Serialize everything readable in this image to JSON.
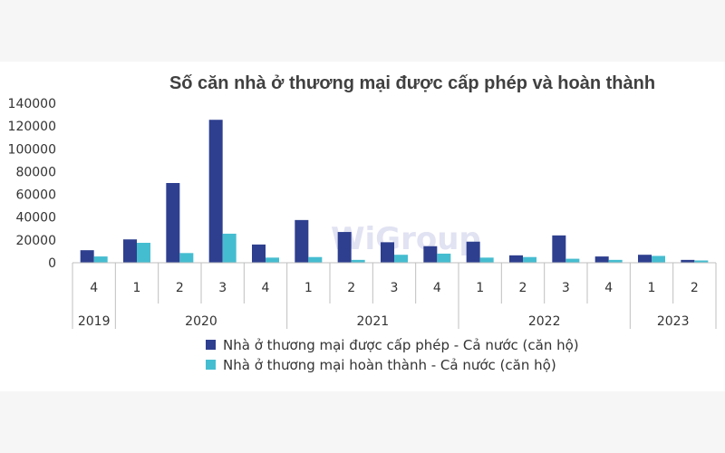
{
  "chart_data": {
    "type": "bar",
    "title": "Số căn nhà ở thương mại được cấp phép và hoàn thành",
    "xlabel": "",
    "ylabel": "",
    "ylim": [
      0,
      140000
    ],
    "yticks": [
      "140000",
      "120000",
      "100000",
      "80000",
      "60000",
      "40000",
      "20000",
      "0"
    ],
    "grid": false,
    "legend_position": "bottom",
    "categories": [
      "4",
      "1",
      "2",
      "3",
      "4",
      "1",
      "2",
      "3",
      "4",
      "1",
      "2",
      "3",
      "4",
      "1",
      "2"
    ],
    "years": [
      {
        "label": "2019",
        "count": 1
      },
      {
        "label": "2020",
        "count": 4
      },
      {
        "label": "2021",
        "count": 4
      },
      {
        "label": "2022",
        "count": 4
      },
      {
        "label": "2023",
        "count": 2
      }
    ],
    "series": [
      {
        "name": "Nhà ở thương mại được cấp phép - Cả nước (căn hộ)",
        "color": "#2e3f8f",
        "values": [
          11000,
          20500,
          70000,
          125500,
          16000,
          37500,
          27000,
          18000,
          14500,
          18500,
          6500,
          24000,
          5500,
          7000,
          2500
        ]
      },
      {
        "name": "Nhà ở thương mại hoàn thành - Cả nước (căn hộ)",
        "color": "#45bdd0",
        "values": [
          5500,
          17500,
          8500,
          25500,
          4500,
          5000,
          2500,
          7000,
          8000,
          4500,
          5000,
          3500,
          2500,
          6000,
          2000
        ]
      }
    ]
  },
  "watermark": "WiGroup"
}
